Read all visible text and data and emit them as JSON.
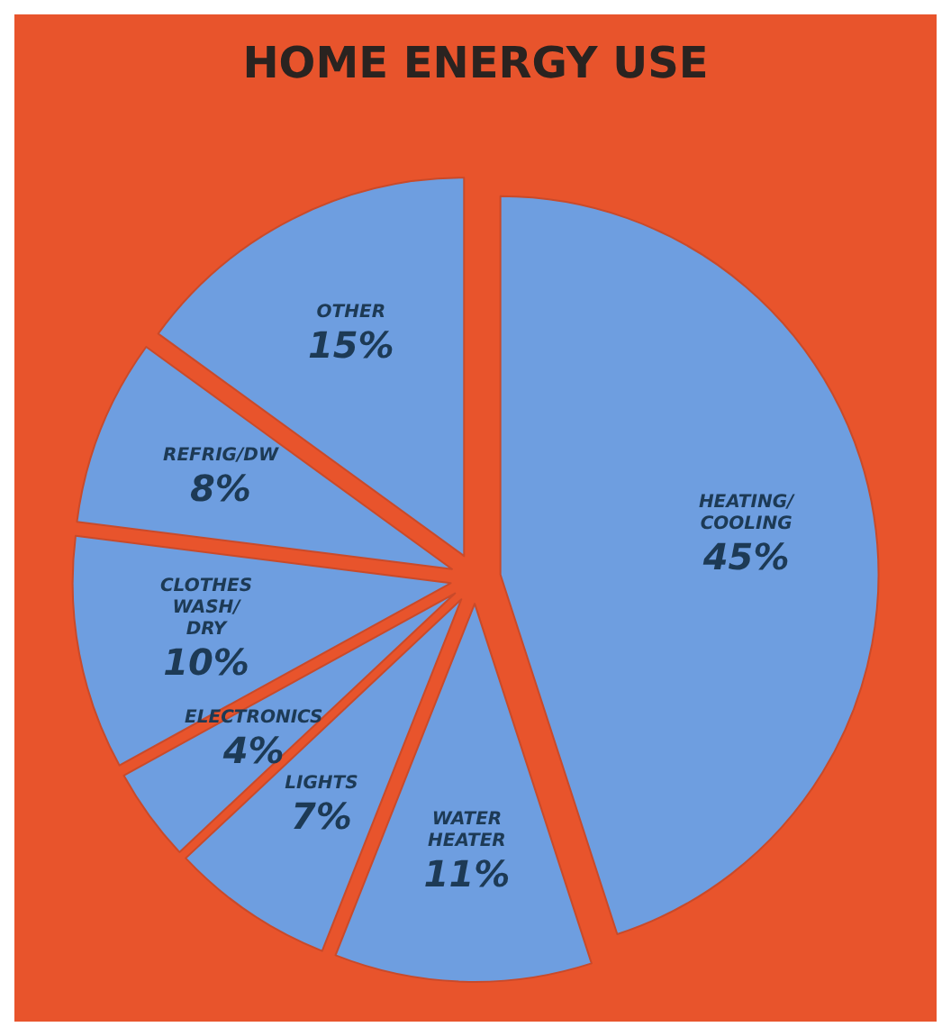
{
  "chart_data": {
    "type": "pie",
    "title": "HOME ENERGY USE",
    "categories": [
      "HEATING/ COOLING",
      "WATER HEATER",
      "LIGHTS",
      "ELECTRONICS",
      "CLOTHES WASH/ DRY",
      "REFRIG/DW",
      "OTHER"
    ],
    "values": [
      45,
      11,
      7,
      4,
      10,
      8,
      15
    ],
    "value_labels": [
      "45%",
      "11%",
      "7%",
      "4%",
      "10%",
      "8%",
      "15%"
    ],
    "colors": [
      "#6e9ee0",
      "#6e9ee0",
      "#6e9ee0",
      "#6e9ee0",
      "#6e9ee0",
      "#6e9ee0",
      "#6e9ee0"
    ],
    "legend": false
  }
}
